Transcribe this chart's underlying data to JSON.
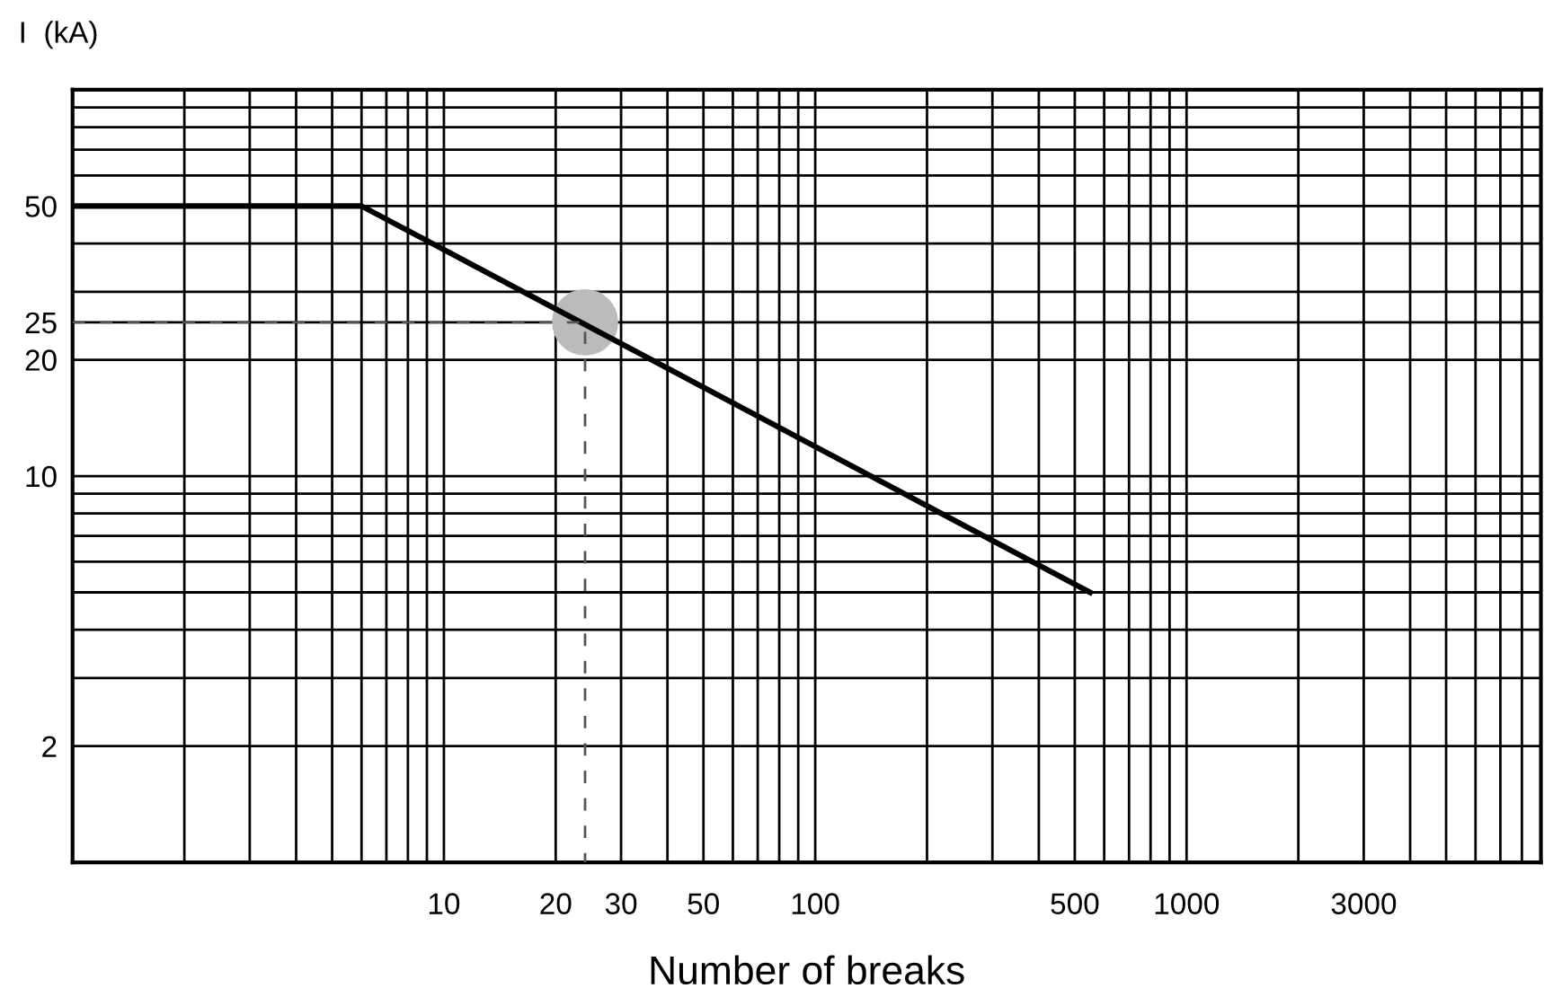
{
  "chart_data": {
    "type": "line",
    "xlabel": "Number of breaks",
    "ylabel": "I  (kA)",
    "log": "xy",
    "grid": true,
    "xlim": [
      1,
      9000
    ],
    "ylim": [
      1,
      100
    ],
    "xticks": [
      {
        "value": 2,
        "label": null
      },
      {
        "value": 3,
        "label": null
      },
      {
        "value": 4,
        "label": null
      },
      {
        "value": 5,
        "label": null
      },
      {
        "value": 6,
        "label": null
      },
      {
        "value": 7,
        "label": null
      },
      {
        "value": 8,
        "label": null
      },
      {
        "value": 9,
        "label": null
      },
      10,
      20,
      30,
      {
        "value": 40,
        "label": null
      },
      50,
      {
        "value": 60,
        "label": null
      },
      {
        "value": 70,
        "label": null
      },
      {
        "value": 80,
        "label": null
      },
      {
        "value": 90,
        "label": null
      },
      100,
      {
        "value": 200,
        "label": null
      },
      {
        "value": 300,
        "label": null
      },
      {
        "value": 400,
        "label": null
      },
      500,
      {
        "value": 600,
        "label": null
      },
      {
        "value": 700,
        "label": null
      },
      {
        "value": 800,
        "label": null
      },
      {
        "value": 900,
        "label": null
      },
      1000,
      {
        "value": 2000,
        "label": null
      },
      3000,
      {
        "value": 4000,
        "label": null
      },
      {
        "value": 5000,
        "label": null
      },
      {
        "value": 6000,
        "label": null
      },
      {
        "value": 7000,
        "label": null
      },
      {
        "value": 8000,
        "label": null
      }
    ],
    "yticks": [
      2,
      {
        "value": 3,
        "label": null
      },
      {
        "value": 4,
        "label": null
      },
      {
        "value": 5,
        "label": null
      },
      {
        "value": 6,
        "label": null
      },
      {
        "value": 7,
        "label": null
      },
      {
        "value": 8,
        "label": null
      },
      {
        "value": 9,
        "label": null
      },
      10,
      20,
      25,
      {
        "value": 30,
        "label": null
      },
      {
        "value": 40,
        "label": null
      },
      50,
      {
        "value": 60,
        "label": null
      },
      {
        "value": 70,
        "label": null
      },
      {
        "value": 80,
        "label": null
      },
      {
        "value": 90,
        "label": null
      }
    ],
    "series": [
      {
        "color": "#000000",
        "line_style": "solid",
        "marker": "none",
        "x": [
          1,
          6,
          550
        ],
        "values": [
          50,
          50,
          5
        ]
      },
      {
        "color": "#555555",
        "line_style": "dashed",
        "marker": "none",
        "x": [
          1,
          24,
          24
        ],
        "values": [
          25,
          25,
          1
        ]
      },
      {
        "type": "scatter",
        "color": "#bbbbbb",
        "marker": "circle",
        "x": [
          24
        ],
        "values": [
          25
        ]
      }
    ]
  }
}
